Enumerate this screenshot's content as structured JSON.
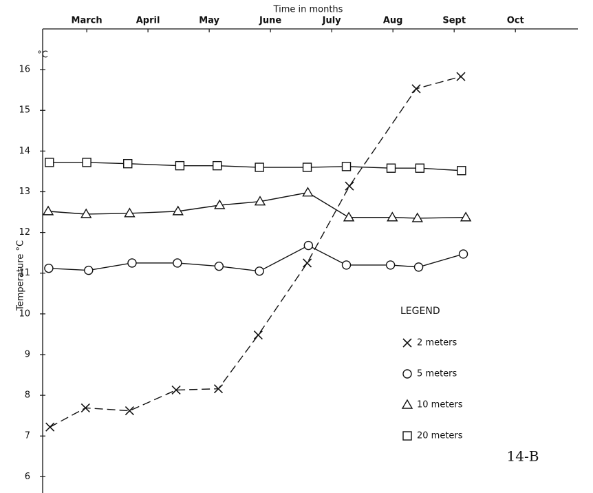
{
  "chart_data": {
    "type": "scatter",
    "title": "Time in months",
    "ylabel": "Temperature °C",
    "yunit": "°C",
    "legend_title": "LEGEND",
    "annotation": "14-B",
    "xlim": [
      2.28,
      11.02
    ],
    "xticks": [
      {
        "value": 3,
        "label": "March"
      },
      {
        "value": 4,
        "label": "April"
      },
      {
        "value": 5,
        "label": "May"
      },
      {
        "value": 6,
        "label": "June"
      },
      {
        "value": 7,
        "label": "July"
      },
      {
        "value": 8,
        "label": "Aug"
      },
      {
        "value": 9,
        "label": "Sept"
      },
      {
        "value": 10,
        "label": "Oct"
      }
    ],
    "ylim": [
      5.6,
      17.0
    ],
    "yticks": [
      6,
      7,
      8,
      9,
      10,
      11,
      12,
      13,
      14,
      15,
      16
    ],
    "series": [
      {
        "name": "2 meters",
        "marker": "x",
        "color": "#111111",
        "dashed": true,
        "x": [
          2.4,
          2.98,
          3.7,
          4.46,
          5.15,
          5.8,
          6.6,
          7.29,
          8.38,
          9.11
        ],
        "values": [
          7.22,
          7.69,
          7.62,
          8.13,
          8.16,
          9.48,
          11.25,
          13.14,
          15.53,
          15.83
        ]
      },
      {
        "name": "5 meters",
        "marker": "o",
        "color": "#111111",
        "dashed": false,
        "x": [
          2.38,
          3.03,
          3.74,
          4.48,
          5.16,
          5.82,
          6.62,
          7.24,
          7.96,
          8.42,
          9.15
        ],
        "values": [
          11.12,
          11.07,
          11.25,
          11.25,
          11.17,
          11.05,
          11.68,
          11.2,
          11.2,
          11.15,
          11.47
        ]
      },
      {
        "name": "10 meters",
        "marker": "^",
        "color": "#111111",
        "dashed": false,
        "x": [
          2.37,
          2.99,
          3.7,
          4.49,
          5.17,
          5.83,
          6.61,
          7.28,
          7.99,
          8.4,
          9.19
        ],
        "values": [
          12.52,
          12.45,
          12.47,
          12.52,
          12.67,
          12.76,
          12.98,
          12.37,
          12.37,
          12.35,
          12.37
        ]
      },
      {
        "name": "20 meters",
        "marker": "s",
        "color": "#111111",
        "dashed": false,
        "x": [
          2.39,
          3.0,
          3.67,
          4.52,
          5.13,
          5.82,
          6.6,
          7.24,
          7.97,
          8.44,
          9.12
        ],
        "values": [
          13.72,
          13.72,
          13.69,
          13.64,
          13.64,
          13.6,
          13.6,
          13.62,
          13.58,
          13.58,
          13.52
        ]
      }
    ]
  }
}
